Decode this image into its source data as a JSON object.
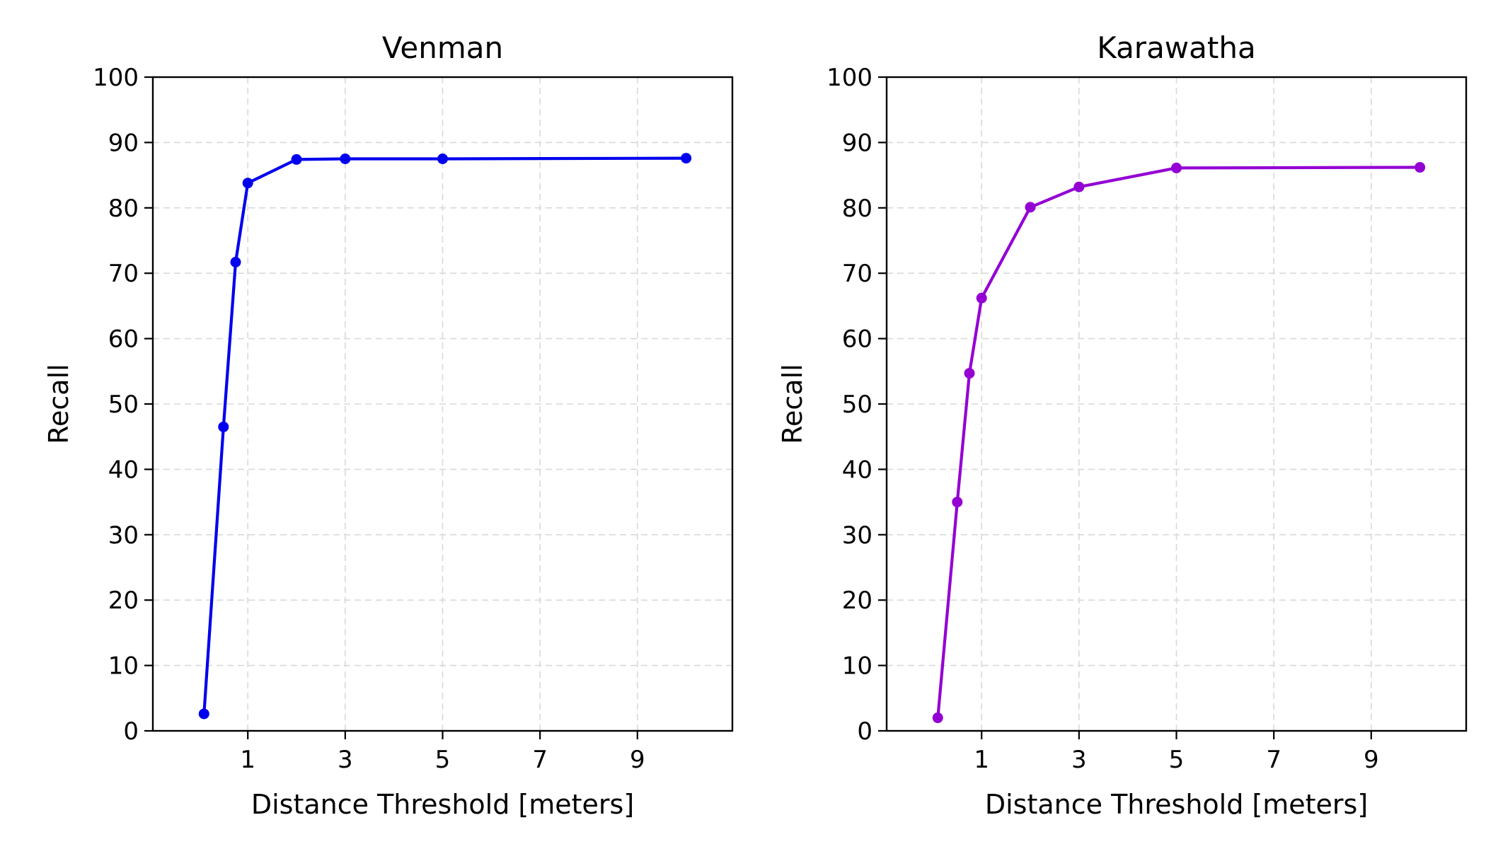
{
  "chart_data": [
    {
      "type": "line",
      "title": "Venman",
      "xlabel": "Distance Threshold [meters]",
      "ylabel": "Recall",
      "xlim": [
        -0.95,
        10.95
      ],
      "ylim": [
        0,
        100
      ],
      "xticks": [
        1,
        3,
        5,
        7,
        9
      ],
      "yticks": [
        0,
        10,
        20,
        30,
        40,
        50,
        60,
        70,
        80,
        90,
        100
      ],
      "grid": true,
      "legend": "none",
      "color": "#0000ee",
      "series": [
        {
          "x": [
            0.1,
            0.5,
            0.75,
            1,
            2,
            3,
            5,
            10
          ],
          "y": [
            2.6,
            46.5,
            71.7,
            83.8,
            87.4,
            87.5,
            87.5,
            87.6
          ]
        }
      ]
    },
    {
      "type": "line",
      "title": "Karawatha",
      "xlabel": "Distance Threshold [meters]",
      "ylabel": "Recall",
      "xlim": [
        -0.95,
        10.95
      ],
      "ylim": [
        0,
        100
      ],
      "xticks": [
        1,
        3,
        5,
        7,
        9
      ],
      "yticks": [
        0,
        10,
        20,
        30,
        40,
        50,
        60,
        70,
        80,
        90,
        100
      ],
      "grid": true,
      "legend": "none",
      "color": "#9400d3",
      "series": [
        {
          "x": [
            0.1,
            0.5,
            0.75,
            1,
            2,
            3,
            5,
            10
          ],
          "y": [
            2.0,
            35.0,
            54.7,
            66.2,
            80.1,
            83.2,
            86.1,
            86.2
          ]
        }
      ]
    }
  ]
}
